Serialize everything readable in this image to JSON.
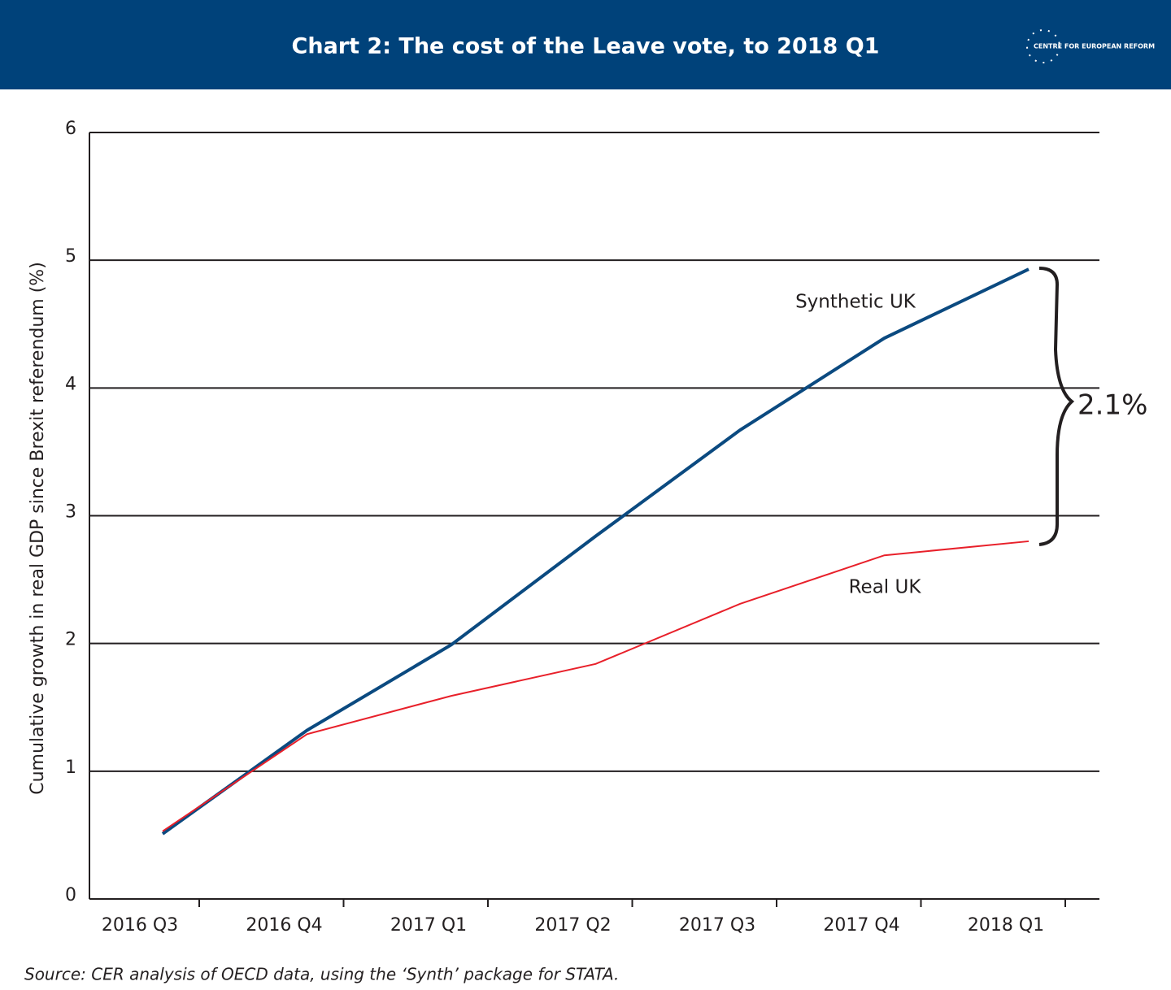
{
  "chart_data": {
    "type": "line",
    "title": "Chart 2: The cost of the Leave vote, to 2018 Q1",
    "logo": "CENTRE FOR EUROPEAN REFORM",
    "y_label": "Cumulative growth in real GDP since Brexit referendum (%)",
    "source": "Source: CER analysis of OECD data, using the ‘Synth’ package for STATA.",
    "annotation": "2.1%",
    "categories": [
      "2016 Q3",
      "2016 Q4",
      "2017 Q1",
      "2017 Q2",
      "2017 Q3",
      "2017 Q4",
      "2018 Q1"
    ],
    "series": [
      {
        "name": "Synthetic UK",
        "color": "#0b4a80",
        "values": [
          0.51,
          1.32,
          1.99,
          2.84,
          3.67,
          4.39,
          4.93
        ]
      },
      {
        "name": "Real UK",
        "color": "#e8202a",
        "values": [
          0.53,
          1.29,
          1.59,
          1.84,
          2.31,
          2.69,
          2.8
        ]
      }
    ],
    "ylim": [
      0,
      6
    ],
    "yticks": [
      0,
      1,
      2,
      3,
      4,
      5,
      6
    ],
    "grid": true
  }
}
